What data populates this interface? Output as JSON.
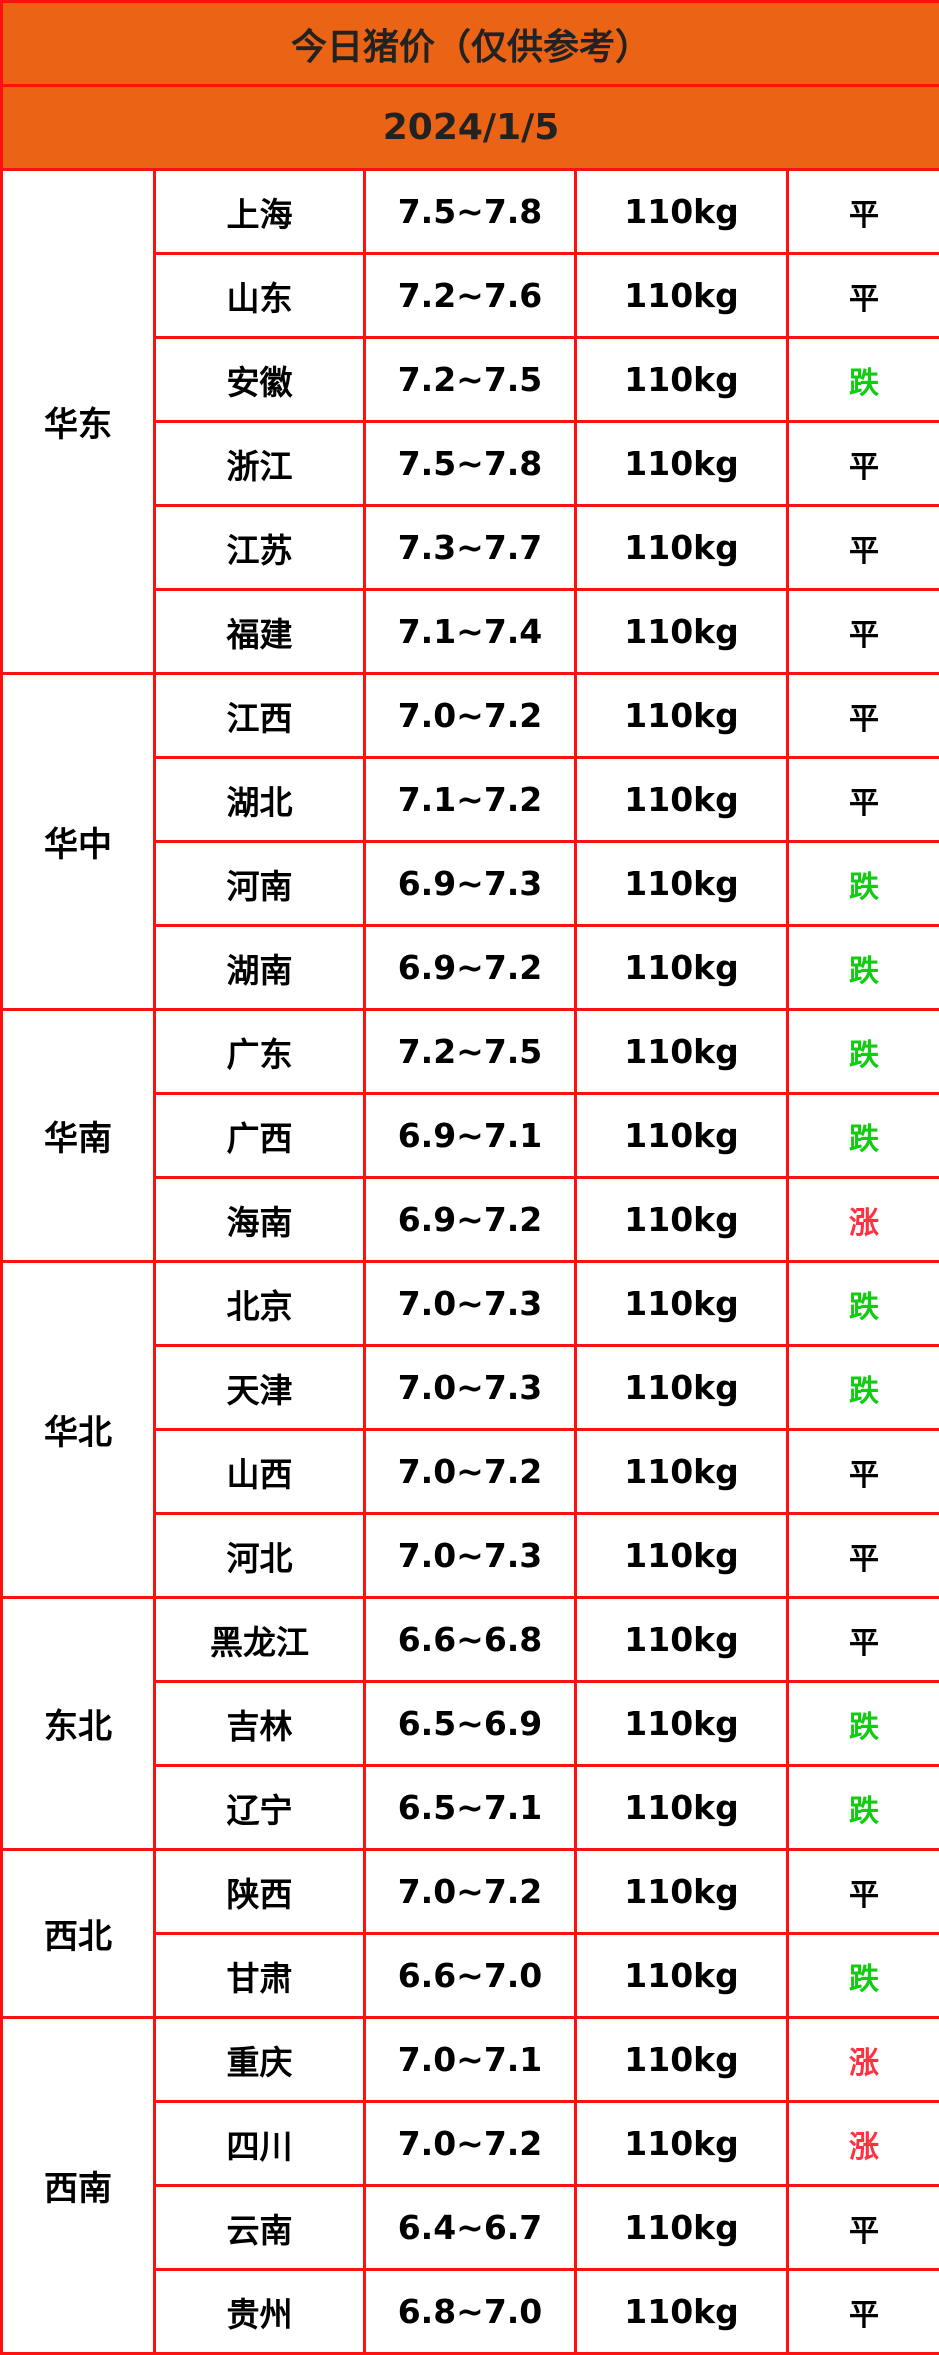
{
  "title": "今日猪价（仅供参考）",
  "date": "2024/1/5",
  "colors": {
    "header_bg": "#eb6314",
    "border": "#ff1010",
    "down": "#11cc11",
    "up": "#ff3040",
    "flat": "#000000"
  },
  "regions": [
    {
      "name": "华东",
      "rows": [
        [
          "上海",
          "7.5~7.8",
          "110kg",
          "平"
        ],
        [
          "山东",
          "7.2~7.6",
          "110kg",
          "平"
        ],
        [
          "安徽",
          "7.2~7.5",
          "110kg",
          "跌"
        ],
        [
          "浙江",
          "7.5~7.8",
          "110kg",
          "平"
        ],
        [
          "江苏",
          "7.3~7.7",
          "110kg",
          "平"
        ],
        [
          "福建",
          "7.1~7.4",
          "110kg",
          "平"
        ]
      ]
    },
    {
      "name": "华中",
      "rows": [
        [
          "江西",
          "7.0~7.2",
          "110kg",
          "平"
        ],
        [
          "湖北",
          "7.1~7.2",
          "110kg",
          "平"
        ],
        [
          "河南",
          "6.9~7.3",
          "110kg",
          "跌"
        ],
        [
          "湖南",
          "6.9~7.2",
          "110kg",
          "跌"
        ]
      ]
    },
    {
      "name": "华南",
      "rows": [
        [
          "广东",
          "7.2~7.5",
          "110kg",
          "跌"
        ],
        [
          "广西",
          "6.9~7.1",
          "110kg",
          "跌"
        ],
        [
          "海南",
          "6.9~7.2",
          "110kg",
          "涨"
        ]
      ]
    },
    {
      "name": "华北",
      "rows": [
        [
          "北京",
          "7.0~7.3",
          "110kg",
          "跌"
        ],
        [
          "天津",
          "7.0~7.3",
          "110kg",
          "跌"
        ],
        [
          "山西",
          "7.0~7.2",
          "110kg",
          "平"
        ],
        [
          "河北",
          "7.0~7.3",
          "110kg",
          "平"
        ]
      ]
    },
    {
      "name": "东北",
      "rows": [
        [
          "黑龙江",
          "6.6~6.8",
          "110kg",
          "平"
        ],
        [
          "吉林",
          "6.5~6.9",
          "110kg",
          "跌"
        ],
        [
          "辽宁",
          "6.5~7.1",
          "110kg",
          "跌"
        ]
      ]
    },
    {
      "name": "西北",
      "rows": [
        [
          "陕西",
          "7.0~7.2",
          "110kg",
          "平"
        ],
        [
          "甘肃",
          "6.6~7.0",
          "110kg",
          "跌"
        ]
      ]
    },
    {
      "name": "西南",
      "rows": [
        [
          "重庆",
          "7.0~7.1",
          "110kg",
          "涨"
        ],
        [
          "四川",
          "7.0~7.2",
          "110kg",
          "涨"
        ],
        [
          "云南",
          "6.4~6.7",
          "110kg",
          "平"
        ],
        [
          "贵州",
          "6.8~7.0",
          "110kg",
          "平"
        ]
      ]
    }
  ]
}
